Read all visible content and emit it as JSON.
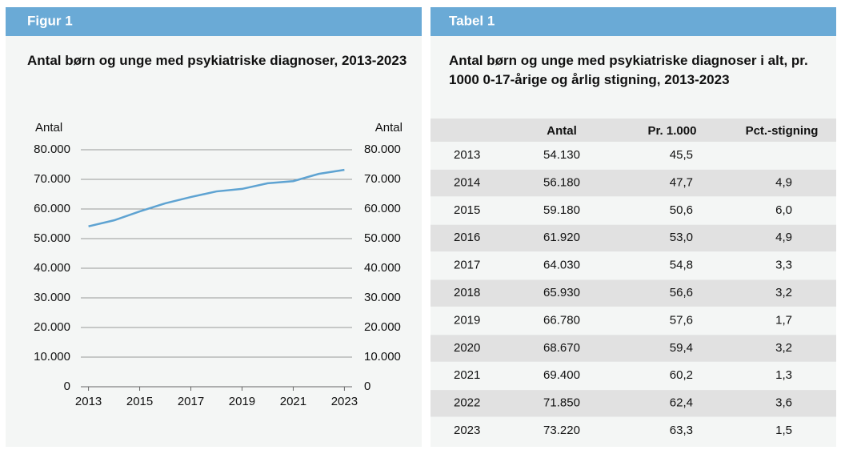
{
  "figure_label": "Figur 1",
  "chart_data": {
    "type": "line",
    "title": "Antal børn og unge med psykiatriske diagnoser, 2013-2023",
    "ylabel": "Antal",
    "y2label": "Antal",
    "x": [
      2013,
      2014,
      2015,
      2016,
      2017,
      2018,
      2019,
      2020,
      2021,
      2022,
      2023
    ],
    "xlim": [
      2012.7,
      2023.3
    ],
    "xticks": [
      2013,
      2015,
      2017,
      2019,
      2021,
      2023
    ],
    "series": [
      {
        "name": "Antal",
        "color": "#5ea3d2",
        "values": [
          54130,
          56180,
          59180,
          61920,
          64030,
          65930,
          66780,
          68670,
          69400,
          71850,
          73220
        ]
      }
    ],
    "ylim": [
      0,
      80000
    ],
    "yticks": [
      0,
      {
        "value": 10000,
        "label": "10.000"
      },
      {
        "value": 20000,
        "label": "20.000"
      },
      {
        "value": 30000,
        "label": "30.000"
      },
      {
        "value": 40000,
        "label": "40.000"
      },
      {
        "value": 50000,
        "label": "50.000"
      },
      {
        "value": 60000,
        "label": "60.000"
      },
      {
        "value": 70000,
        "label": "70.000"
      },
      {
        "value": 80000,
        "label": "80.000"
      }
    ],
    "y2lim": [
      0,
      80000
    ],
    "y2ticks": [
      0,
      {
        "value": 10000,
        "label": "10.000"
      },
      {
        "value": 20000,
        "label": "20.000"
      },
      {
        "value": 30000,
        "label": "30.000"
      },
      {
        "value": 40000,
        "label": "40.000"
      },
      {
        "value": 50000,
        "label": "50.000"
      },
      {
        "value": 60000,
        "label": "60.000"
      },
      {
        "value": 70000,
        "label": "70.000"
      },
      {
        "value": 80000,
        "label": "80.000"
      }
    ],
    "grid": true
  },
  "table": {
    "label": "Tabel 1",
    "title": "Antal børn og unge med psykiatriske diagnoser i alt, pr. 1000 0-17-årige og årlig stigning, 2013-2023",
    "columns": [
      "Antal",
      "Pr. 1.000",
      "Pct.-stigning"
    ],
    "rows": [
      [
        "2013",
        "54.130",
        "45,5",
        null
      ],
      [
        "2014",
        "56.180",
        "47,7",
        "4,9"
      ],
      [
        "2015",
        "59.180",
        "50,6",
        "6,0"
      ],
      [
        "2016",
        "61.920",
        "53,0",
        "4,9"
      ],
      [
        "2017",
        "64.030",
        "54,8",
        "3,3"
      ],
      [
        "2018",
        "65.930",
        "56,6",
        "3,2"
      ],
      [
        "2019",
        "66.780",
        "57,6",
        "1,7"
      ],
      [
        "2020",
        "68.670",
        "59,4",
        "3,2"
      ],
      [
        "2021",
        "69.400",
        "60,2",
        "1,3"
      ],
      [
        "2022",
        "71.850",
        "62,4",
        "3,6"
      ],
      [
        "2023",
        "73.220",
        "63,3",
        "1,5"
      ]
    ]
  }
}
